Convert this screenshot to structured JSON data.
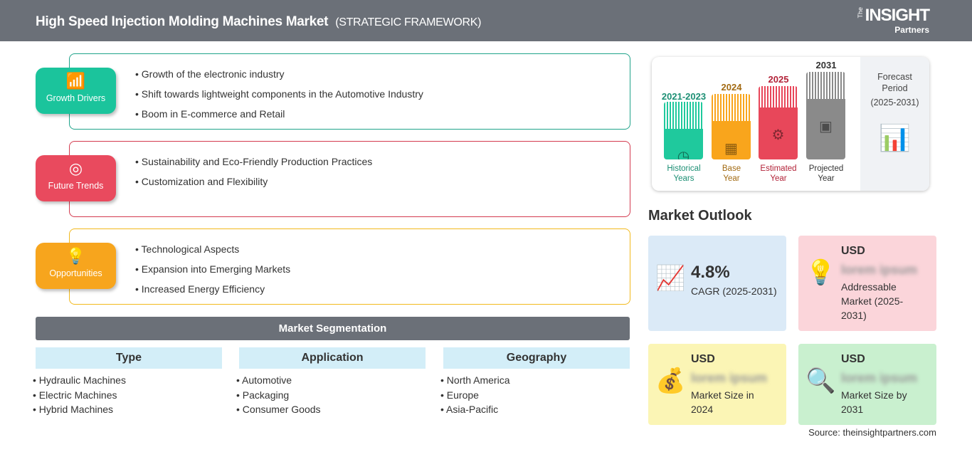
{
  "header": {
    "title": "High Speed Injection Molding Machines Market",
    "subtitle": "(STRATEGIC FRAMEWORK)",
    "logo": {
      "the": "The",
      "insight": "INSIGHT",
      "partners": "Partners"
    }
  },
  "sections": [
    {
      "label": "Growth Drivers",
      "icon": "growth-chart-icon",
      "color": "#1bc49c",
      "border": "#1fa38a",
      "items": [
        "Growth of the electronic industry",
        "Shift towards lightweight components in the Automotive Industry",
        "Boom in E-commerce and Retail"
      ]
    },
    {
      "label": "Future Trends",
      "icon": "target-icon",
      "color": "#e94a5e",
      "border": "#d33a4f",
      "items": [
        "Sustainability and Eco-Friendly Production Practices",
        "Customization and Flexibility"
      ]
    },
    {
      "label": "Opportunities",
      "icon": "lightbulb-hand-icon",
      "color": "#f7a51d",
      "border": "#f2b91c",
      "items": [
        "Technological Aspects",
        "Expansion into Emerging Markets",
        "Increased Energy Efficiency"
      ]
    }
  ],
  "segmentation": {
    "title": "Market Segmentation",
    "columns": [
      {
        "header": "Type",
        "items": [
          "Hydraulic Machines",
          "Electric Machines",
          "Hybrid Machines"
        ]
      },
      {
        "header": "Application",
        "items": [
          "Automotive",
          "Packaging",
          "Consumer Goods"
        ]
      },
      {
        "header": "Geography",
        "items": [
          "North America",
          "Europe",
          "Asia-Pacific"
        ]
      }
    ]
  },
  "timeline": {
    "bars": [
      {
        "year": "2021-2023",
        "label1": "Historical",
        "label2": "Years",
        "color": "#1fc99d",
        "text": "#1c8f74"
      },
      {
        "year": "2024",
        "label1": "Base",
        "label2": "Year",
        "color": "#f9a51c",
        "text": "#a26a12"
      },
      {
        "year": "2025",
        "label1": "Estimated",
        "label2": "Year",
        "color": "#e8475a",
        "text": "#b22238"
      },
      {
        "year": "2031",
        "label1": "Projected",
        "label2": "Year",
        "color": "#8a8a8a",
        "text": "#333333"
      }
    ],
    "forecast": {
      "l1": "Forecast",
      "l2": "Period",
      "l3": "(2025-2031)"
    }
  },
  "outlook": {
    "title": "Market Outlook",
    "cards": [
      {
        "value": "4.8%",
        "label": "CAGR (2025-2031)",
        "color": "#dbeaf7"
      },
      {
        "usd": "USD",
        "blur": "lorem ipsum",
        "label": "Addressable Market (2025-2031)",
        "color": "#fbd5da"
      },
      {
        "usd": "USD",
        "blur": "lorem ipsum",
        "label": "Market Size in 2024",
        "color": "#fbf5b5"
      },
      {
        "usd": "USD",
        "blur": "lorem ipsum",
        "label": "Market Size by 2031",
        "color": "#c9f0cf"
      }
    ]
  },
  "source": "Source: theinsightpartners.com"
}
